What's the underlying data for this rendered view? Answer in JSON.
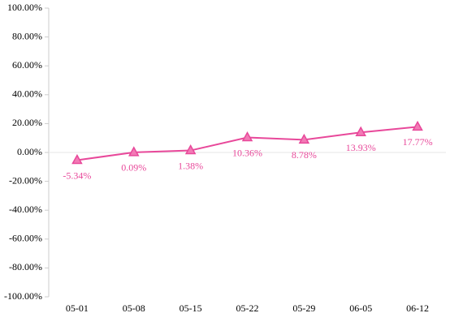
{
  "chart_data": {
    "type": "line",
    "categories": [
      "05-01",
      "05-08",
      "05-15",
      "05-22",
      "05-29",
      "06-05",
      "06-12"
    ],
    "series": [
      {
        "color": "#e8489a",
        "values": [
          -5.34,
          0.09,
          1.38,
          10.36,
          8.78,
          13.93,
          17.77
        ],
        "value_labels": [
          "-5.34%",
          "0.09%",
          "1.38%",
          "10.36%",
          "8.78%",
          "13.93%",
          "17.77%"
        ]
      }
    ],
    "ylim": [
      -100,
      100
    ],
    "yticks": [
      {
        "value": -100,
        "label": "-100.00%"
      },
      {
        "value": -80,
        "label": "-80.00%"
      },
      {
        "value": -60,
        "label": "-60.00%"
      },
      {
        "value": -40,
        "label": "-40.00%"
      },
      {
        "value": -20,
        "label": "-20.00%"
      },
      {
        "value": 0,
        "label": "0.00%"
      },
      {
        "value": 20,
        "label": "20.00%"
      },
      {
        "value": 40,
        "label": "40.00%"
      },
      {
        "value": 60,
        "label": "60.00%"
      },
      {
        "value": 80,
        "label": "80.00%"
      },
      {
        "value": 100,
        "label": "100.00%"
      }
    ]
  }
}
